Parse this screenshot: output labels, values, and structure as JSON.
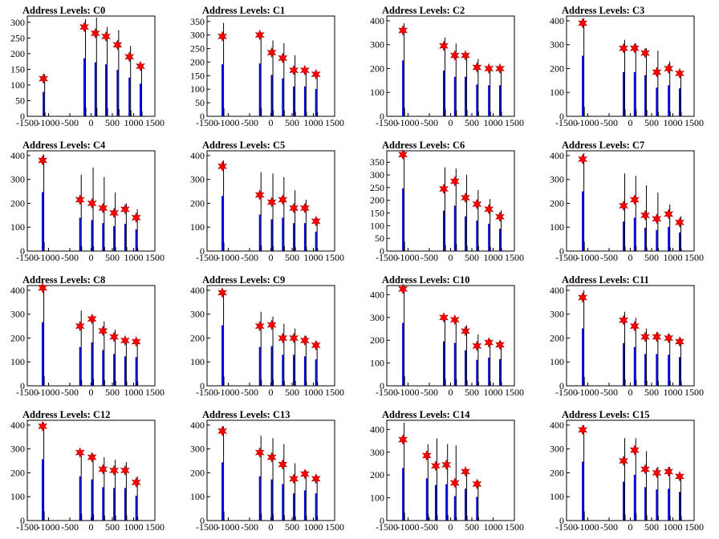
{
  "chart_data": [
    {
      "type": "bar",
      "title": "Address Levels: C0",
      "xlim": [
        -1500,
        1500
      ],
      "ylim": [
        0,
        320
      ],
      "yticks": [
        0,
        50,
        100,
        150,
        200,
        250,
        300
      ],
      "xtick_labels": [
        "-1500",
        "-1000",
        "-500",
        "0",
        "500",
        "1000",
        "1500"
      ],
      "x": [
        -1120,
        -160,
        100,
        350,
        620,
        900,
        1160
      ],
      "star_values": [
        120,
        285,
        265,
        255,
        228,
        190,
        160
      ],
      "peak_values": [
        135,
        310,
        315,
        285,
        275,
        225,
        165
      ]
    },
    {
      "type": "bar",
      "title": "Address Levels: C1",
      "xlim": [
        -1500,
        1500
      ],
      "ylim": [
        0,
        370
      ],
      "yticks": [
        0,
        50,
        100,
        150,
        200,
        250,
        300,
        350
      ],
      "xtick_labels": [
        "-1500",
        "-1000",
        "-500",
        "0",
        "500",
        "1000",
        "1500"
      ],
      "x": [
        -1140,
        -260,
        20,
        280,
        540,
        800,
        1060
      ],
      "star_values": [
        295,
        300,
        235,
        215,
        170,
        170,
        155
      ],
      "peak_values": [
        345,
        310,
        280,
        270,
        225,
        175,
        165
      ]
    },
    {
      "type": "bar",
      "title": "Address Levels: C2",
      "xlim": [
        -1500,
        1500
      ],
      "ylim": [
        0,
        420
      ],
      "yticks": [
        0,
        100,
        200,
        300,
        400
      ],
      "xtick_labels": [
        "-1500",
        "-1000",
        "-500",
        "0",
        "500",
        "1000",
        "1500"
      ],
      "x": [
        -1120,
        -160,
        100,
        350,
        620,
        900,
        1160
      ],
      "star_values": [
        360,
        295,
        255,
        255,
        205,
        200,
        200
      ],
      "peak_values": [
        390,
        330,
        305,
        260,
        240,
        205,
        205
      ]
    },
    {
      "type": "bar",
      "title": "Address Levels: C3",
      "xlim": [
        -1500,
        1500
      ],
      "ylim": [
        0,
        420
      ],
      "yticks": [
        0,
        100,
        200,
        300,
        400
      ],
      "xtick_labels": [
        "-1500",
        "-1000",
        "-500",
        "0",
        "500",
        "1000",
        "1500"
      ],
      "x": [
        -1120,
        -160,
        100,
        350,
        620,
        900,
        1160
      ],
      "star_values": [
        390,
        285,
        285,
        265,
        185,
        200,
        180
      ],
      "peak_values": [
        410,
        320,
        305,
        285,
        275,
        230,
        190
      ]
    },
    {
      "type": "bar",
      "title": "Address Levels: C4",
      "xlim": [
        -1500,
        1500
      ],
      "ylim": [
        0,
        420
      ],
      "yticks": [
        0,
        100,
        200,
        300,
        400
      ],
      "xtick_labels": [
        "-1500",
        "-1000",
        "-500",
        "0",
        "500",
        "1000",
        "1500"
      ],
      "x": [
        -1140,
        -260,
        20,
        280,
        540,
        800,
        1060
      ],
      "star_values": [
        380,
        215,
        200,
        180,
        160,
        175,
        140
      ],
      "peak_values": [
        405,
        320,
        350,
        310,
        245,
        200,
        175
      ]
    },
    {
      "type": "bar",
      "title": "Address Levels: C5",
      "xlim": [
        -1500,
        1500
      ],
      "ylim": [
        0,
        420
      ],
      "yticks": [
        0,
        100,
        200,
        300,
        400
      ],
      "xtick_labels": [
        "-1500",
        "-1000",
        "-500",
        "0",
        "500",
        "1000",
        "1500"
      ],
      "x": [
        -1140,
        -260,
        20,
        280,
        540,
        800,
        1060
      ],
      "star_values": [
        355,
        235,
        205,
        215,
        180,
        180,
        125
      ],
      "peak_values": [
        380,
        330,
        325,
        310,
        255,
        215,
        140
      ]
    },
    {
      "type": "bar",
      "title": "Address Levels: C6",
      "xlim": [
        -1500,
        1500
      ],
      "ylim": [
        0,
        395
      ],
      "yticks": [
        0,
        50,
        100,
        150,
        200,
        250,
        300,
        350
      ],
      "xtick_labels": [
        "-1500",
        "-1000",
        "-500",
        "0",
        "500",
        "1000",
        "1500"
      ],
      "x": [
        -1120,
        -160,
        100,
        350,
        620,
        900,
        1160
      ],
      "star_values": [
        380,
        245,
        275,
        210,
        185,
        165,
        135
      ],
      "peak_values": [
        395,
        330,
        325,
        300,
        240,
        205,
        160
      ]
    },
    {
      "type": "bar",
      "title": "Address Levels: C7",
      "xlim": [
        -1500,
        1500
      ],
      "ylim": [
        0,
        420
      ],
      "yticks": [
        0,
        100,
        200,
        300,
        400
      ],
      "xtick_labels": [
        "-1500",
        "-1000",
        "-500",
        "0",
        "500",
        "1000",
        "1500"
      ],
      "x": [
        -1120,
        -160,
        100,
        350,
        620,
        900,
        1160
      ],
      "star_values": [
        385,
        190,
        215,
        150,
        135,
        155,
        120
      ],
      "peak_values": [
        410,
        325,
        315,
        275,
        245,
        195,
        145
      ]
    },
    {
      "type": "bar",
      "title": "Address Levels: C8",
      "xlim": [
        -1500,
        1500
      ],
      "ylim": [
        0,
        420
      ],
      "yticks": [
        0,
        100,
        200,
        300,
        400
      ],
      "xtick_labels": [
        "-1500",
        "-1000",
        "-500",
        "0",
        "500",
        "1000",
        "1500"
      ],
      "x": [
        -1140,
        -260,
        20,
        280,
        540,
        800,
        1060
      ],
      "star_values": [
        410,
        250,
        280,
        230,
        205,
        190,
        185
      ],
      "peak_values": [
        420,
        315,
        295,
        270,
        235,
        200,
        190
      ]
    },
    {
      "type": "bar",
      "title": "Address Levels: C9",
      "xlim": [
        -1500,
        1500
      ],
      "ylim": [
        0,
        420
      ],
      "yticks": [
        0,
        100,
        200,
        300,
        400
      ],
      "xtick_labels": [
        "-1500",
        "-1000",
        "-500",
        "0",
        "500",
        "1000",
        "1500"
      ],
      "x": [
        -1140,
        -260,
        20,
        280,
        540,
        800,
        1060
      ],
      "star_values": [
        390,
        250,
        255,
        200,
        200,
        190,
        170
      ],
      "peak_values": [
        400,
        310,
        290,
        260,
        240,
        210,
        185
      ]
    },
    {
      "type": "bar",
      "title": "Address Levels: C10",
      "xlim": [
        -1500,
        1500
      ],
      "ylim": [
        0,
        440
      ],
      "yticks": [
        0,
        100,
        200,
        300,
        400
      ],
      "xtick_labels": [
        "-1500",
        "-1000",
        "-500",
        "0",
        "500",
        "1000",
        "1500"
      ],
      "x": [
        -1120,
        -160,
        100,
        350,
        620,
        900,
        1160
      ],
      "star_values": [
        425,
        300,
        290,
        240,
        175,
        190,
        180
      ],
      "peak_values": [
        440,
        310,
        300,
        265,
        225,
        205,
        195
      ]
    },
    {
      "type": "bar",
      "title": "Address Levels: C11",
      "xlim": [
        -1500,
        1500
      ],
      "ylim": [
        0,
        420
      ],
      "yticks": [
        0,
        100,
        200,
        300,
        400
      ],
      "xtick_labels": [
        "-1500",
        "-1000",
        "-500",
        "0",
        "500",
        "1000",
        "1500"
      ],
      "x": [
        -1120,
        -160,
        100,
        350,
        620,
        900,
        1160
      ],
      "star_values": [
        370,
        275,
        250,
        205,
        205,
        200,
        185
      ],
      "peak_values": [
        400,
        310,
        285,
        240,
        225,
        215,
        200
      ]
    },
    {
      "type": "bar",
      "title": "Address Levels: C12",
      "xlim": [
        -1500,
        1500
      ],
      "ylim": [
        0,
        420
      ],
      "yticks": [
        0,
        100,
        200,
        300,
        400
      ],
      "xtick_labels": [
        "-1500",
        "-1000",
        "-500",
        "0",
        "500",
        "1000",
        "1500"
      ],
      "x": [
        -1140,
        -260,
        20,
        280,
        540,
        800,
        1060
      ],
      "star_values": [
        395,
        285,
        265,
        215,
        210,
        210,
        160
      ],
      "peak_values": [
        410,
        295,
        280,
        265,
        255,
        245,
        185
      ]
    },
    {
      "type": "bar",
      "title": "Address Levels: C13",
      "xlim": [
        -1500,
        1500
      ],
      "ylim": [
        0,
        420
      ],
      "yticks": [
        0,
        100,
        200,
        300,
        400
      ],
      "xtick_labels": [
        "-1500",
        "-1000",
        "-500",
        "0",
        "500",
        "1000",
        "1500"
      ],
      "x": [
        -1140,
        -260,
        20,
        280,
        540,
        800,
        1060
      ],
      "star_values": [
        375,
        285,
        265,
        235,
        175,
        195,
        175
      ],
      "peak_values": [
        395,
        355,
        345,
        320,
        240,
        210,
        190
      ]
    },
    {
      "type": "bar",
      "title": "Address Levels: C14",
      "xlim": [
        -1500,
        1500
      ],
      "ylim": [
        0,
        440
      ],
      "yticks": [
        0,
        100,
        200,
        300,
        400
      ],
      "xtick_labels": [
        "-1500",
        "-1000",
        "-500",
        "0",
        "500",
        "1000",
        "1500"
      ],
      "x": [
        -1120,
        -560,
        -350,
        -100,
        100,
        350,
        620
      ],
      "star_values": [
        355,
        285,
        240,
        245,
        165,
        215,
        160
      ],
      "peak_values": [
        430,
        335,
        360,
        335,
        330,
        225,
        175
      ]
    },
    {
      "type": "bar",
      "title": "Address Levels: C15",
      "xlim": [
        -1500,
        1500
      ],
      "ylim": [
        0,
        420
      ],
      "yticks": [
        0,
        100,
        200,
        300,
        400
      ],
      "xtick_labels": [
        "-1500",
        "-1000",
        "-500",
        "0",
        "500",
        "1000",
        "1500"
      ],
      "x": [
        -1120,
        -160,
        100,
        350,
        620,
        900,
        1160
      ],
      "star_values": [
        380,
        250,
        295,
        215,
        200,
        205,
        185
      ],
      "peak_values": [
        400,
        345,
        345,
        290,
        225,
        225,
        195
      ]
    }
  ],
  "colors": {
    "bars": "#0000dd",
    "spike": "#000000",
    "marker": "#ff0000",
    "marker_edge": "#aa0000",
    "axis": "#000000"
  }
}
